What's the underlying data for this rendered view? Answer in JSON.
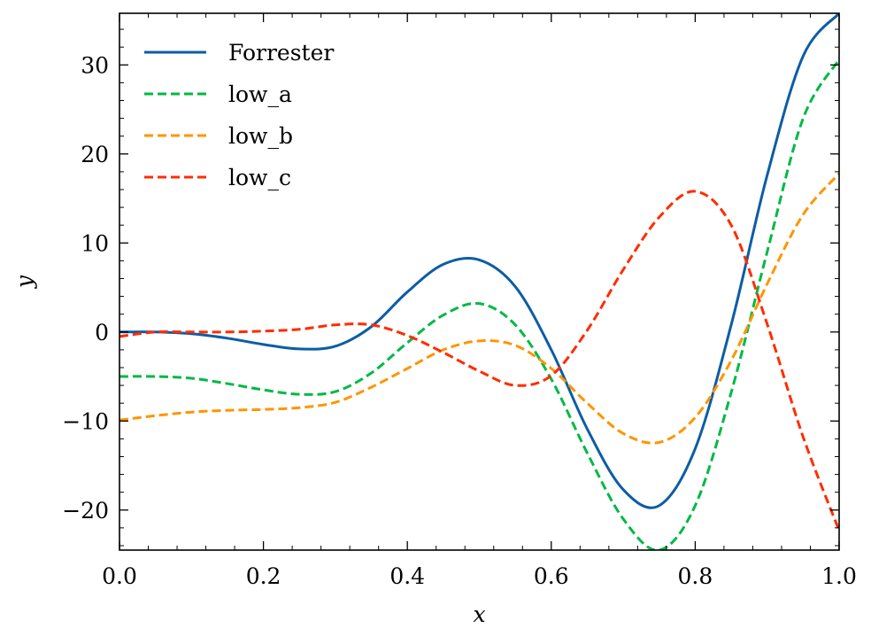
{
  "chart_data": {
    "type": "line",
    "title": "",
    "xlabel": "x",
    "ylabel": "y",
    "xlim": [
      0.0,
      1.0
    ],
    "ylim": [
      -24.5,
      35.8
    ],
    "xticks": [
      0.0,
      0.2,
      0.4,
      0.6,
      0.8,
      1.0
    ],
    "xtick_labels": [
      "0.0",
      "0.2",
      "0.4",
      "0.6",
      "0.8",
      "1.0"
    ],
    "yticks": [
      -20,
      -10,
      0,
      10,
      20,
      30
    ],
    "ytick_labels": [
      "−20",
      "−10",
      "0",
      "10",
      "20",
      "30"
    ],
    "grid": false,
    "legend": "top-left",
    "series": [
      {
        "name": "Forrester",
        "color": "#0C5DA5",
        "dash": "solid",
        "x": [
          0.0,
          0.05,
          0.1,
          0.15,
          0.2,
          0.25,
          0.3,
          0.35,
          0.4,
          0.45,
          0.5,
          0.55,
          0.6,
          0.65,
          0.7,
          0.75,
          0.8,
          0.85,
          0.9,
          0.95,
          1.0
        ],
        "y": [
          0.0,
          0.0,
          -0.2,
          -0.7,
          -1.4,
          -1.9,
          -1.6,
          0.6,
          4.5,
          7.6,
          8.1,
          5.1,
          -2.0,
          -10.9,
          -17.7,
          -19.5,
          -13.1,
          0.8,
          17.6,
          31.0,
          35.8
        ]
      },
      {
        "name": "low_a",
        "color": "#00B945",
        "dash": "dashed",
        "x": [
          0.0,
          0.05,
          0.1,
          0.15,
          0.2,
          0.25,
          0.3,
          0.35,
          0.4,
          0.45,
          0.5,
          0.55,
          0.6,
          0.65,
          0.7,
          0.75,
          0.8,
          0.85,
          0.9,
          0.95,
          1.0
        ],
        "y": [
          -5.0,
          -5.0,
          -5.2,
          -5.8,
          -6.5,
          -7.0,
          -6.7,
          -4.6,
          -1.2,
          1.9,
          3.2,
          0.8,
          -5.3,
          -13.6,
          -21.0,
          -24.5,
          -19.5,
          -6.8,
          9.0,
          24.0,
          30.6
        ]
      },
      {
        "name": "low_b",
        "color": "#FF9500",
        "dash": "dashed",
        "x": [
          0.0,
          0.05,
          0.1,
          0.15,
          0.2,
          0.25,
          0.3,
          0.35,
          0.4,
          0.45,
          0.5,
          0.55,
          0.6,
          0.65,
          0.7,
          0.75,
          0.8,
          0.85,
          0.9,
          0.95,
          1.0
        ],
        "y": [
          -9.9,
          -9.4,
          -9.0,
          -8.8,
          -8.7,
          -8.5,
          -7.9,
          -6.2,
          -4.1,
          -2.0,
          -1.0,
          -1.5,
          -4.1,
          -8.0,
          -11.4,
          -12.4,
          -9.6,
          -3.2,
          5.4,
          13.2,
          17.8
        ]
      },
      {
        "name": "low_c",
        "color": "#FF2C00",
        "dash": "dashed",
        "x": [
          0.0,
          0.05,
          0.1,
          0.15,
          0.2,
          0.25,
          0.3,
          0.35,
          0.4,
          0.45,
          0.5,
          0.55,
          0.6,
          0.65,
          0.7,
          0.75,
          0.8,
          0.85,
          0.9,
          0.95,
          1.0
        ],
        "y": [
          -0.5,
          0.0,
          0.0,
          0.0,
          0.1,
          0.3,
          0.8,
          0.8,
          -0.4,
          -2.3,
          -4.4,
          -6.0,
          -4.9,
          0.2,
          7.0,
          12.9,
          15.8,
          12.0,
          0.9,
          -11.8,
          -22.3
        ]
      }
    ]
  }
}
